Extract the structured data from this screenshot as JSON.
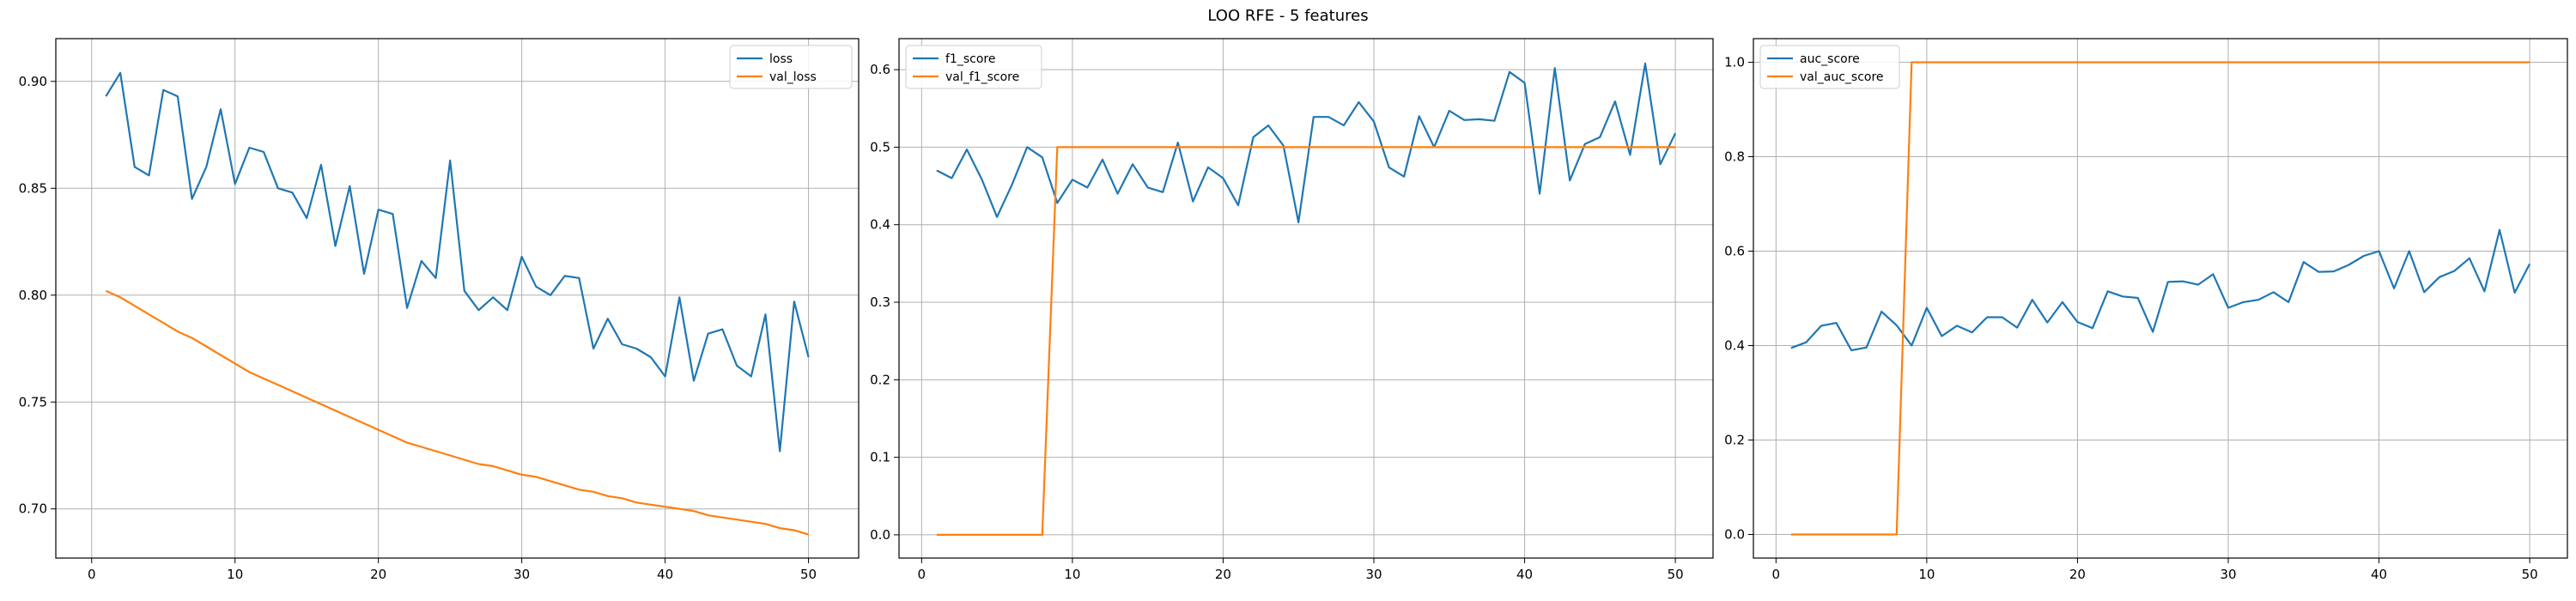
{
  "figure": {
    "title": "LOO RFE - 5 features"
  },
  "colors": {
    "series1": "#1f77b4",
    "series2": "#ff7f0e",
    "grid": "#b0b0b0",
    "axis": "#000000"
  },
  "chart_data": [
    {
      "type": "line",
      "title": "",
      "xlabel": "",
      "ylabel": "",
      "grid": true,
      "legend": "top-right",
      "xlim": [
        -2.5,
        53.5
      ],
      "ylim": [
        0.677,
        0.92
      ],
      "xticks": [
        0,
        10,
        20,
        30,
        40,
        50
      ],
      "xtick_labels": [
        "0",
        "10",
        "20",
        "30",
        "40",
        "50"
      ],
      "yticks": [
        0.7,
        0.75,
        0.8,
        0.85,
        0.9
      ],
      "ytick_labels": [
        "0.70",
        "0.75",
        "0.80",
        "0.85",
        "0.90"
      ],
      "x": [
        1,
        2,
        3,
        4,
        5,
        6,
        7,
        8,
        9,
        10,
        11,
        12,
        13,
        14,
        15,
        16,
        17,
        18,
        19,
        20,
        21,
        22,
        23,
        24,
        25,
        26,
        27,
        28,
        29,
        30,
        31,
        32,
        33,
        34,
        35,
        36,
        37,
        38,
        39,
        40,
        41,
        42,
        43,
        44,
        45,
        46,
        47,
        48,
        49,
        50
      ],
      "series": [
        {
          "name": "loss",
          "values": [
            0.893,
            0.904,
            0.86,
            0.856,
            0.896,
            0.893,
            0.845,
            0.86,
            0.887,
            0.852,
            0.869,
            0.867,
            0.85,
            0.848,
            0.836,
            0.861,
            0.823,
            0.851,
            0.81,
            0.84,
            0.838,
            0.794,
            0.816,
            0.808,
            0.863,
            0.802,
            0.793,
            0.799,
            0.793,
            0.818,
            0.804,
            0.8,
            0.809,
            0.808,
            0.775,
            0.789,
            0.777,
            0.775,
            0.771,
            0.762,
            0.799,
            0.76,
            0.782,
            0.784,
            0.767,
            0.762,
            0.791,
            0.727,
            0.797,
            0.771
          ]
        },
        {
          "name": "val_loss",
          "values": [
            0.802,
            0.799,
            0.795,
            0.791,
            0.787,
            0.783,
            0.78,
            0.776,
            0.772,
            0.768,
            0.764,
            0.761,
            0.758,
            0.755,
            0.752,
            0.749,
            0.746,
            0.743,
            0.74,
            0.737,
            0.734,
            0.731,
            0.729,
            0.727,
            0.725,
            0.723,
            0.721,
            0.72,
            0.718,
            0.716,
            0.715,
            0.713,
            0.711,
            0.709,
            0.708,
            0.706,
            0.705,
            0.703,
            0.702,
            0.701,
            0.7,
            0.699,
            0.697,
            0.696,
            0.695,
            0.694,
            0.693,
            0.691,
            0.69,
            0.688
          ]
        }
      ]
    },
    {
      "type": "line",
      "title": "",
      "xlabel": "",
      "ylabel": "",
      "grid": true,
      "legend": "top-left",
      "xlim": [
        -1.5,
        52.5
      ],
      "ylim": [
        -0.03,
        0.64
      ],
      "xticks": [
        0,
        10,
        20,
        30,
        40,
        50
      ],
      "xtick_labels": [
        "0",
        "10",
        "20",
        "30",
        "40",
        "50"
      ],
      "yticks": [
        0.0,
        0.1,
        0.2,
        0.3,
        0.4,
        0.5,
        0.6
      ],
      "ytick_labels": [
        "0.0",
        "0.1",
        "0.2",
        "0.3",
        "0.4",
        "0.5",
        "0.6"
      ],
      "x": [
        1,
        2,
        3,
        4,
        5,
        6,
        7,
        8,
        9,
        10,
        11,
        12,
        13,
        14,
        15,
        16,
        17,
        18,
        19,
        20,
        21,
        22,
        23,
        24,
        25,
        26,
        27,
        28,
        29,
        30,
        31,
        32,
        33,
        34,
        35,
        36,
        37,
        38,
        39,
        40,
        41,
        42,
        43,
        44,
        45,
        46,
        47,
        48,
        49,
        50
      ],
      "series": [
        {
          "name": "f1_score",
          "values": [
            0.47,
            0.46,
            0.497,
            0.458,
            0.41,
            0.452,
            0.5,
            0.487,
            0.428,
            0.458,
            0.448,
            0.484,
            0.44,
            0.478,
            0.448,
            0.442,
            0.506,
            0.43,
            0.474,
            0.46,
            0.425,
            0.513,
            0.528,
            0.502,
            0.403,
            0.539,
            0.539,
            0.528,
            0.558,
            0.533,
            0.474,
            0.462,
            0.54,
            0.5,
            0.547,
            0.535,
            0.536,
            0.534,
            0.597,
            0.583,
            0.44,
            0.602,
            0.457,
            0.504,
            0.513,
            0.559,
            0.49,
            0.608,
            0.478,
            0.518
          ]
        },
        {
          "name": "val_f1_score",
          "values": [
            0,
            0,
            0,
            0,
            0,
            0,
            0,
            0,
            0.5,
            0.5,
            0.5,
            0.5,
            0.5,
            0.5,
            0.5,
            0.5,
            0.5,
            0.5,
            0.5,
            0.5,
            0.5,
            0.5,
            0.5,
            0.5,
            0.5,
            0.5,
            0.5,
            0.5,
            0.5,
            0.5,
            0.5,
            0.5,
            0.5,
            0.5,
            0.5,
            0.5,
            0.5,
            0.5,
            0.5,
            0.5,
            0.5,
            0.5,
            0.5,
            0.5,
            0.5,
            0.5,
            0.5,
            0.5,
            0.5,
            0.5
          ]
        }
      ]
    },
    {
      "type": "line",
      "title": "",
      "xlabel": "",
      "ylabel": "",
      "grid": true,
      "legend": "top-left",
      "xlim": [
        -1.5,
        52.5
      ],
      "ylim": [
        -0.05,
        1.05
      ],
      "xticks": [
        0,
        10,
        20,
        30,
        40,
        50
      ],
      "xtick_labels": [
        "0",
        "10",
        "20",
        "30",
        "40",
        "50"
      ],
      "yticks": [
        0.0,
        0.2,
        0.4,
        0.6,
        0.8,
        1.0
      ],
      "ytick_labels": [
        "0.0",
        "0.2",
        "0.4",
        "0.6",
        "0.8",
        "1.0"
      ],
      "x": [
        1,
        2,
        3,
        4,
        5,
        6,
        7,
        8,
        9,
        10,
        11,
        12,
        13,
        14,
        15,
        16,
        17,
        18,
        19,
        20,
        21,
        22,
        23,
        24,
        25,
        26,
        27,
        28,
        29,
        30,
        31,
        32,
        33,
        34,
        35,
        36,
        37,
        38,
        39,
        40,
        41,
        42,
        43,
        44,
        45,
        46,
        47,
        48,
        49,
        50
      ],
      "series": [
        {
          "name": "auc_score",
          "values": [
            0.395,
            0.407,
            0.442,
            0.448,
            0.39,
            0.396,
            0.472,
            0.443,
            0.4,
            0.48,
            0.42,
            0.442,
            0.428,
            0.46,
            0.46,
            0.438,
            0.497,
            0.449,
            0.492,
            0.45,
            0.437,
            0.515,
            0.504,
            0.501,
            0.429,
            0.535,
            0.536,
            0.529,
            0.551,
            0.48,
            0.492,
            0.497,
            0.513,
            0.492,
            0.577,
            0.556,
            0.557,
            0.571,
            0.59,
            0.6,
            0.521,
            0.6,
            0.513,
            0.545,
            0.558,
            0.585,
            0.515,
            0.645,
            0.512,
            0.573
          ]
        },
        {
          "name": "val_auc_score",
          "values": [
            0,
            0,
            0,
            0,
            0,
            0,
            0,
            0,
            1,
            1,
            1,
            1,
            1,
            1,
            1,
            1,
            1,
            1,
            1,
            1,
            1,
            1,
            1,
            1,
            1,
            1,
            1,
            1,
            1,
            1,
            1,
            1,
            1,
            1,
            1,
            1,
            1,
            1,
            1,
            1,
            1,
            1,
            1,
            1,
            1,
            1,
            1,
            1,
            1,
            1
          ]
        }
      ]
    }
  ]
}
